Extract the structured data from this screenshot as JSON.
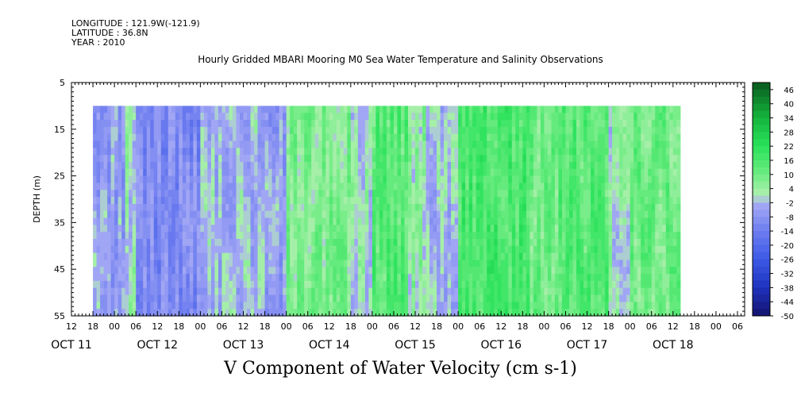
{
  "header": {
    "longitude": "LONGITUDE : 121.9W(-121.9)",
    "latitude": "LATITUDE : 36.8N",
    "year": "YEAR : 2010"
  },
  "chart_data": {
    "type": "heatmap",
    "title": "Hourly Gridded MBARI Mooring M0 Sea Water Temperature and Salinity Observations",
    "xlabel": "V Component of Water Velocity (cm s-1)",
    "ylabel": "DEPTH (m)",
    "ylim": [
      5,
      55
    ],
    "y_inverted": true,
    "yticks": [
      5,
      15,
      25,
      35,
      45,
      55
    ],
    "x_hour_ticks": [
      "12",
      "18",
      "00",
      "06",
      "12",
      "18",
      "00",
      "06",
      "12",
      "18",
      "00",
      "06",
      "12",
      "18",
      "00",
      "06",
      "12",
      "18",
      "00",
      "06",
      "12",
      "18",
      "00",
      "06",
      "12",
      "18",
      "00",
      "06",
      "12",
      "18",
      "00",
      "06"
    ],
    "x_day_labels": [
      "OCT 11",
      "OCT 12",
      "OCT 13",
      "OCT 14",
      "OCT 15",
      "OCT 16",
      "OCT 17",
      "OCT 18"
    ],
    "data_depth_range": [
      10,
      55
    ],
    "data_time_start": "OCT 11 18",
    "colorbar": {
      "labels": [
        "46",
        "40",
        "34",
        "28",
        "22",
        "16",
        "10",
        "4",
        "-2",
        "-8",
        "-14",
        "-20",
        "-26",
        "-32",
        "-38",
        "-44",
        "-50"
      ],
      "levels": [
        -50,
        -47,
        -44,
        -41,
        -38,
        -35,
        -32,
        -29,
        -26,
        -23,
        -20,
        -17,
        -14,
        -11,
        -8,
        -5,
        -2,
        1,
        4,
        7,
        10,
        13,
        16,
        19,
        22,
        25,
        28,
        31,
        34,
        37,
        40,
        43,
        46,
        49
      ]
    },
    "colors": {
      "lightest_positive": "#a8f0b0",
      "light_positive": "#82f08a",
      "mid_positive": "#3ce860",
      "strong_positive": "#18d848",
      "lightest_negative": "#a8acf4",
      "light_negative": "#9098f0",
      "mid_negative": "#6878ec"
    },
    "segments": [
      {
        "from": "OCT 11 18",
        "to": "OCT 12 03",
        "tendency": -6
      },
      {
        "from": "OCT 12 03",
        "to": "OCT 12 06",
        "tendency": 2
      },
      {
        "from": "OCT 12 06",
        "to": "OCT 13 00",
        "tendency": -10
      },
      {
        "from": "OCT 13 00",
        "to": "OCT 13 18",
        "tendency": -3
      },
      {
        "from": "OCT 13 18",
        "to": "OCT 14 00",
        "tendency": -6
      },
      {
        "from": "OCT 14 00",
        "to": "OCT 14 18",
        "tendency": 8
      },
      {
        "from": "OCT 14 18",
        "to": "OCT 15 00",
        "tendency": 0
      },
      {
        "from": "OCT 15 00",
        "to": "OCT 15 10",
        "tendency": 14
      },
      {
        "from": "OCT 15 10",
        "to": "OCT 15 15",
        "tendency": 4
      },
      {
        "from": "OCT 15 15",
        "to": "OCT 16 00",
        "tendency": -2
      },
      {
        "from": "OCT 16 00",
        "to": "OCT 16 20",
        "tendency": 16
      },
      {
        "from": "OCT 16 20",
        "to": "OCT 17 04",
        "tendency": 10
      },
      {
        "from": "OCT 17 04",
        "to": "OCT 17 18",
        "tendency": 14
      },
      {
        "from": "OCT 17 18",
        "to": "OCT 18 00",
        "tendency": 2
      },
      {
        "from": "OCT 18 00",
        "to": "OCT 18 14",
        "tendency": 10
      }
    ]
  }
}
